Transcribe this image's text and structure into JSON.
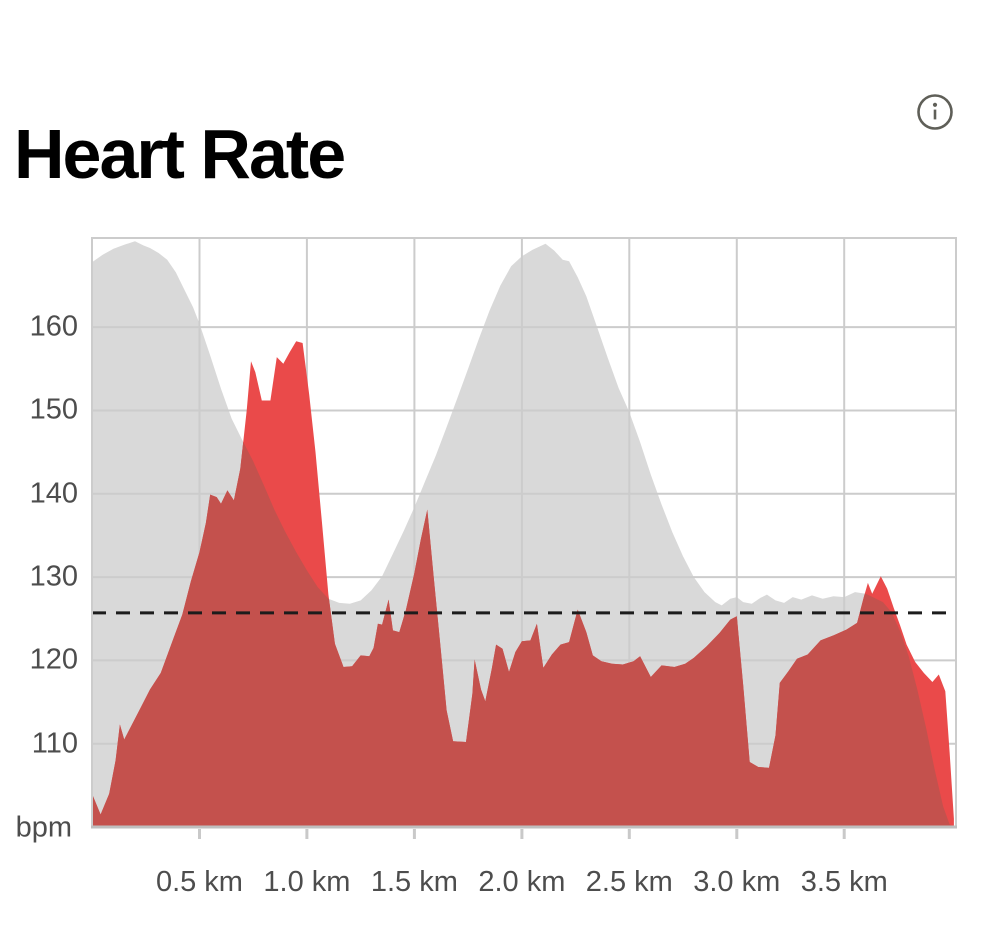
{
  "header": {
    "title": "Heart Rate"
  },
  "colors": {
    "elevation_fill": "#d9d9d9",
    "heart_rate_fill": "#ea4a4a",
    "overlap_fill": "#c4514d",
    "grid_line": "#cccccc",
    "axis_line": "#bfbfbf",
    "tick_mark": "#c9c9c9",
    "average_line": "#1c1c1c",
    "tick_text": "#4d4d4d",
    "title_text": "#000000",
    "info_icon": "#5f5f58"
  },
  "chart_data": {
    "type": "area",
    "title": "Heart Rate",
    "x_unit": "km",
    "y_unit": "bpm",
    "y_axis_label": "bpm",
    "xlim": [
      0,
      4.02
    ],
    "ylim": [
      100,
      170.7
    ],
    "grid": true,
    "legend": "none",
    "x_ticks": [
      {
        "value": 0.5,
        "label": "0.5 km"
      },
      {
        "value": 1.0,
        "label": "1.0 km"
      },
      {
        "value": 1.5,
        "label": "1.5 km"
      },
      {
        "value": 2.0,
        "label": "2.0 km"
      },
      {
        "value": 2.5,
        "label": "2.5 km"
      },
      {
        "value": 3.0,
        "label": "3.0 km"
      },
      {
        "value": 3.5,
        "label": "3.5 km"
      }
    ],
    "y_ticks": [
      {
        "value": 160,
        "label": "160"
      },
      {
        "value": 150,
        "label": "150"
      },
      {
        "value": 140,
        "label": "140"
      },
      {
        "value": 130,
        "label": "130"
      },
      {
        "value": 120,
        "label": "120"
      },
      {
        "value": 110,
        "label": "110"
      }
    ],
    "average_line": {
      "value": 125.7,
      "style": "dashed"
    },
    "series": [
      {
        "name": "elevation",
        "role": "background",
        "points": [
          [
            0.0,
            167.8
          ],
          [
            0.05,
            168.7
          ],
          [
            0.1,
            169.4
          ],
          [
            0.15,
            169.9
          ],
          [
            0.2,
            170.3
          ],
          [
            0.24,
            169.8
          ],
          [
            0.27,
            169.5
          ],
          [
            0.31,
            168.9
          ],
          [
            0.35,
            168.1
          ],
          [
            0.39,
            166.6
          ],
          [
            0.43,
            164.5
          ],
          [
            0.47,
            162.4
          ],
          [
            0.5,
            160.4
          ],
          [
            0.55,
            156.6
          ],
          [
            0.6,
            152.6
          ],
          [
            0.65,
            149.0
          ],
          [
            0.7,
            146.4
          ],
          [
            0.75,
            143.9
          ],
          [
            0.8,
            141.0
          ],
          [
            0.85,
            138.0
          ],
          [
            0.9,
            135.4
          ],
          [
            0.95,
            133.0
          ],
          [
            1.0,
            130.8
          ],
          [
            1.05,
            128.8
          ],
          [
            1.1,
            127.4
          ],
          [
            1.15,
            126.9
          ],
          [
            1.2,
            126.8
          ],
          [
            1.25,
            127.2
          ],
          [
            1.3,
            128.4
          ],
          [
            1.35,
            130.1
          ],
          [
            1.4,
            132.8
          ],
          [
            1.45,
            135.5
          ],
          [
            1.5,
            138.4
          ],
          [
            1.55,
            141.5
          ],
          [
            1.6,
            144.6
          ],
          [
            1.65,
            148.0
          ],
          [
            1.7,
            151.5
          ],
          [
            1.75,
            155.0
          ],
          [
            1.8,
            158.6
          ],
          [
            1.85,
            162.0
          ],
          [
            1.9,
            165.0
          ],
          [
            1.95,
            167.3
          ],
          [
            2.0,
            168.5
          ],
          [
            2.05,
            169.3
          ],
          [
            2.11,
            170.0
          ],
          [
            2.15,
            169.2
          ],
          [
            2.19,
            168.1
          ],
          [
            2.22,
            167.9
          ],
          [
            2.26,
            166.0
          ],
          [
            2.3,
            163.7
          ],
          [
            2.35,
            160.0
          ],
          [
            2.4,
            156.3
          ],
          [
            2.45,
            152.7
          ],
          [
            2.5,
            149.8
          ],
          [
            2.55,
            146.2
          ],
          [
            2.6,
            142.3
          ],
          [
            2.65,
            138.7
          ],
          [
            2.7,
            135.4
          ],
          [
            2.75,
            132.5
          ],
          [
            2.8,
            130.0
          ],
          [
            2.85,
            128.2
          ],
          [
            2.9,
            127.0
          ],
          [
            2.93,
            126.6
          ],
          [
            2.97,
            127.4
          ],
          [
            3.0,
            127.6
          ],
          [
            3.03,
            127.0
          ],
          [
            3.07,
            126.8
          ],
          [
            3.11,
            127.5
          ],
          [
            3.14,
            127.9
          ],
          [
            3.18,
            127.2
          ],
          [
            3.22,
            126.9
          ],
          [
            3.26,
            127.6
          ],
          [
            3.3,
            127.3
          ],
          [
            3.35,
            127.8
          ],
          [
            3.4,
            127.4
          ],
          [
            3.45,
            127.7
          ],
          [
            3.5,
            127.6
          ],
          [
            3.55,
            128.2
          ],
          [
            3.6,
            128.0
          ],
          [
            3.64,
            127.5
          ],
          [
            3.68,
            127.0
          ],
          [
            3.72,
            125.8
          ],
          [
            3.76,
            123.5
          ],
          [
            3.8,
            120.5
          ],
          [
            3.84,
            116.5
          ],
          [
            3.88,
            112.0
          ],
          [
            3.92,
            107.0
          ],
          [
            3.96,
            102.5
          ],
          [
            3.99,
            100.3
          ],
          [
            4.01,
            100.1
          ]
        ]
      },
      {
        "name": "heart_rate",
        "role": "foreground",
        "points": [
          [
            0.0,
            104.0
          ],
          [
            0.04,
            101.5
          ],
          [
            0.08,
            104.0
          ],
          [
            0.11,
            108.0
          ],
          [
            0.13,
            112.3
          ],
          [
            0.15,
            110.5
          ],
          [
            0.18,
            112.0
          ],
          [
            0.22,
            114.0
          ],
          [
            0.27,
            116.5
          ],
          [
            0.32,
            118.5
          ],
          [
            0.37,
            122.0
          ],
          [
            0.42,
            125.5
          ],
          [
            0.46,
            129.5
          ],
          [
            0.5,
            133.0
          ],
          [
            0.53,
            136.5
          ],
          [
            0.55,
            139.9
          ],
          [
            0.58,
            139.6
          ],
          [
            0.6,
            138.8
          ],
          [
            0.63,
            140.4
          ],
          [
            0.66,
            139.2
          ],
          [
            0.69,
            143.0
          ],
          [
            0.72,
            150.0
          ],
          [
            0.74,
            155.9
          ],
          [
            0.76,
            154.6
          ],
          [
            0.79,
            151.2
          ],
          [
            0.83,
            151.2
          ],
          [
            0.86,
            156.4
          ],
          [
            0.89,
            155.6
          ],
          [
            0.92,
            157.0
          ],
          [
            0.95,
            158.3
          ],
          [
            0.98,
            158.1
          ],
          [
            1.01,
            152.0
          ],
          [
            1.04,
            145.0
          ],
          [
            1.07,
            136.5
          ],
          [
            1.1,
            127.9
          ],
          [
            1.13,
            122.0
          ],
          [
            1.17,
            119.2
          ],
          [
            1.21,
            119.3
          ],
          [
            1.25,
            120.6
          ],
          [
            1.29,
            120.5
          ],
          [
            1.31,
            121.5
          ],
          [
            1.33,
            124.4
          ],
          [
            1.35,
            124.3
          ],
          [
            1.38,
            127.3
          ],
          [
            1.4,
            123.6
          ],
          [
            1.43,
            123.4
          ],
          [
            1.46,
            126.0
          ],
          [
            1.5,
            130.5
          ],
          [
            1.53,
            134.5
          ],
          [
            1.56,
            138.1
          ],
          [
            1.59,
            130.0
          ],
          [
            1.62,
            122.0
          ],
          [
            1.65,
            114.0
          ],
          [
            1.68,
            110.3
          ],
          [
            1.74,
            110.2
          ],
          [
            1.77,
            116.0
          ],
          [
            1.78,
            120.1
          ],
          [
            1.81,
            116.5
          ],
          [
            1.83,
            115.1
          ],
          [
            1.86,
            119.0
          ],
          [
            1.88,
            121.9
          ],
          [
            1.91,
            121.4
          ],
          [
            1.94,
            118.6
          ],
          [
            1.97,
            121.0
          ],
          [
            2.0,
            122.3
          ],
          [
            2.04,
            122.4
          ],
          [
            2.07,
            124.4
          ],
          [
            2.1,
            119.1
          ],
          [
            2.14,
            120.7
          ],
          [
            2.18,
            121.9
          ],
          [
            2.22,
            122.2
          ],
          [
            2.26,
            126.1
          ],
          [
            2.3,
            123.4
          ],
          [
            2.33,
            120.6
          ],
          [
            2.37,
            119.9
          ],
          [
            2.42,
            119.6
          ],
          [
            2.47,
            119.5
          ],
          [
            2.52,
            119.9
          ],
          [
            2.55,
            120.5
          ],
          [
            2.6,
            118.0
          ],
          [
            2.65,
            119.4
          ],
          [
            2.71,
            119.2
          ],
          [
            2.76,
            119.6
          ],
          [
            2.8,
            120.3
          ],
          [
            2.86,
            121.7
          ],
          [
            2.92,
            123.3
          ],
          [
            2.97,
            124.9
          ],
          [
            3.0,
            125.3
          ],
          [
            3.03,
            117.0
          ],
          [
            3.06,
            107.8
          ],
          [
            3.1,
            107.2
          ],
          [
            3.15,
            107.1
          ],
          [
            3.18,
            111.0
          ],
          [
            3.2,
            117.3
          ],
          [
            3.24,
            118.7
          ],
          [
            3.28,
            120.2
          ],
          [
            3.33,
            120.7
          ],
          [
            3.39,
            122.4
          ],
          [
            3.45,
            123.0
          ],
          [
            3.51,
            123.7
          ],
          [
            3.56,
            124.5
          ],
          [
            3.59,
            127.5
          ],
          [
            3.61,
            129.3
          ],
          [
            3.63,
            128.0
          ],
          [
            3.67,
            130.1
          ],
          [
            3.7,
            128.6
          ],
          [
            3.73,
            126.3
          ],
          [
            3.76,
            124.2
          ],
          [
            3.79,
            121.9
          ],
          [
            3.83,
            119.8
          ],
          [
            3.87,
            118.5
          ],
          [
            3.91,
            117.4
          ],
          [
            3.94,
            118.3
          ],
          [
            3.97,
            116.3
          ],
          [
            3.99,
            109.0
          ],
          [
            4.01,
            101.0
          ]
        ]
      }
    ]
  }
}
